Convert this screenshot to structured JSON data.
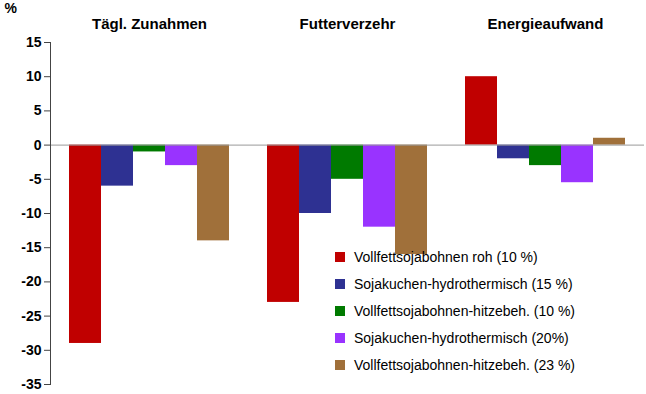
{
  "chart_data": {
    "type": "bar",
    "ylabel": "%",
    "categories": [
      "Tägl. Zunahmen",
      "Futterverzehr",
      "Energieaufwand"
    ],
    "series": [
      {
        "name": "Vollfettsojabohnen roh (10 %)",
        "color": "#c00000",
        "values": [
          -29,
          -23,
          10
        ]
      },
      {
        "name": "Sojakuchen-hydrothermisch (15 %)",
        "color": "#2e3192",
        "values": [
          -6,
          -10,
          -2
        ]
      },
      {
        "name": "Vollfettsojabohnen-hitzebeh. (10 %)",
        "color": "#007a00",
        "values": [
          -1,
          -5,
          -3
        ]
      },
      {
        "name": "Sojakuchen-hydrothermisch (20%)",
        "color": "#9933ff",
        "values": [
          -3,
          -12,
          -5.5
        ]
      },
      {
        "name": "Vollfettsojabohnen-hitzebeh. (23 %)",
        "color": "#a0703a",
        "values": [
          -14,
          -16,
          1
        ]
      }
    ],
    "ylim": [
      -35,
      15
    ],
    "yticks": [
      -35,
      -30,
      -25,
      -20,
      -15,
      -10,
      -5,
      0,
      5,
      10,
      15
    ],
    "legend": "bottom-right",
    "grid": false
  }
}
